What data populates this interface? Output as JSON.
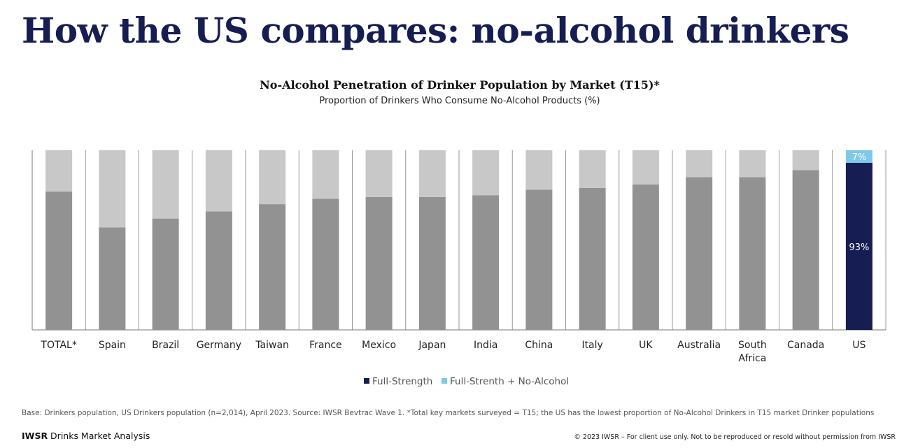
{
  "title": "How the US compares: no-alcohol drinkers",
  "chart_data": {
    "type": "bar",
    "stacked": true,
    "title": "No-Alcohol Penetration of Drinker Population by Market (T15)*",
    "subtitle": "Proportion of Drinkers Who Consume No-Alcohol Products (%)",
    "categories": [
      "TOTAL*",
      "Spain",
      "Brazil",
      "Germany",
      "Taiwan",
      "France",
      "Mexico",
      "Japan",
      "India",
      "China",
      "Italy",
      "UK",
      "Australia",
      "South Africa",
      "Canada",
      "US"
    ],
    "series": [
      {
        "name": "Full-Strength",
        "values": [
          77,
          57,
          62,
          66,
          70,
          73,
          74,
          74,
          75,
          78,
          79,
          81,
          85,
          85,
          89,
          93
        ]
      },
      {
        "name": "Full-Strenth + No-Alcohol",
        "values": [
          23,
          43,
          38,
          34,
          30,
          27,
          26,
          26,
          25,
          22,
          21,
          19,
          15,
          15,
          11,
          7
        ]
      }
    ],
    "data_labels": {
      "US_full_strength": "93%",
      "US_no_alcohol": "7%"
    },
    "ylim": [
      0,
      100
    ],
    "grid": false,
    "legend_position": "bottom",
    "colors": {
      "other_full_strength": "#929292",
      "other_no_alcohol": "#c8c8c8",
      "us_full_strength": "#161d52",
      "us_no_alcohol": "#7ec8ea"
    }
  },
  "footer": {
    "note": "Base: Drinkers population, US Drinkers population (n=2,014), April 2023. Source: IWSR Bevtrac Wave 1. *Total key markets surveyed = T15; the US has the lowest proportion of No-Alcohol Drinkers in T15 market Drinker populations",
    "brand_bold": "IWSR",
    "brand_rest": " Drinks Market Analysis",
    "copyright": "© 2023 IWSR – For client use only. Not to be reproduced or resold without permission from IWSR"
  }
}
